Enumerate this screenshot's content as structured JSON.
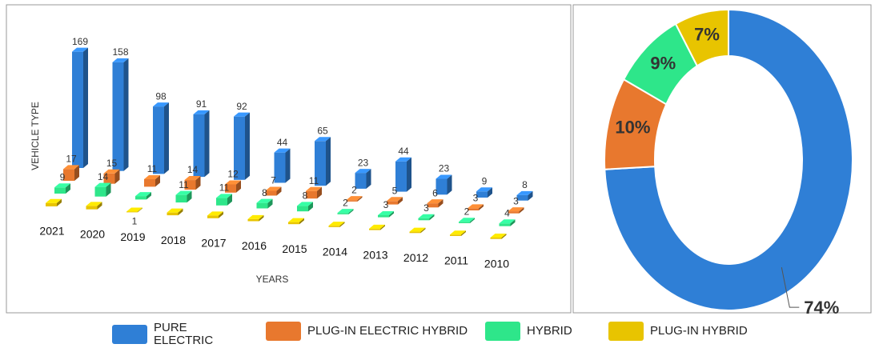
{
  "chart_data": [
    {
      "type": "bar3d",
      "ylabel": "VEHICLE TYPE",
      "xlabel": "YEARS",
      "categories": [
        "2021",
        "2020",
        "2019",
        "2018",
        "2017",
        "2016",
        "2015",
        "2014",
        "2013",
        "2012",
        "2011",
        "2010"
      ],
      "series": [
        {
          "name": "PURE ELECTRIC",
          "color": "#2f7fd6",
          "values": [
            169,
            158,
            98,
            91,
            92,
            44,
            65,
            23,
            44,
            23,
            9,
            8
          ]
        },
        {
          "name": "PLUG-IN ELECTRIC HYBRID",
          "color": "#e8782e",
          "values": [
            17,
            15,
            11,
            14,
            12,
            7,
            11,
            2,
            5,
            6,
            3,
            3
          ]
        },
        {
          "name": "HYBRID",
          "color": "#2ee68a",
          "values": [
            9,
            14,
            5,
            11,
            11,
            8,
            8,
            2,
            3,
            3,
            2,
            4
          ],
          "value_labels": [
            "9",
            "14",
            null,
            "11",
            "11",
            "8",
            "8",
            "2",
            "3",
            "3",
            "2",
            "4"
          ]
        },
        {
          "name": "PLUG-IN HYBRID",
          "color": "#e8c400",
          "values": [
            5,
            5,
            1,
            4,
            4,
            3,
            3,
            2,
            2,
            2,
            2,
            2
          ],
          "value_labels": [
            null,
            null,
            "1",
            null,
            null,
            null,
            null,
            null,
            null,
            null,
            null,
            null
          ]
        }
      ]
    },
    {
      "type": "donut",
      "categories": [
        "PURE ELECTRIC",
        "PLUG-IN ELECTRIC HYBRID",
        "HYBRID",
        "PLUG-IN HYBRID"
      ],
      "values": [
        74,
        10,
        9,
        7
      ],
      "value_labels": [
        "74%",
        "10%",
        "9%",
        "7%"
      ],
      "colors": [
        "#2f7fd6",
        "#e8782e",
        "#2ee68a",
        "#e8c400"
      ]
    }
  ]
}
